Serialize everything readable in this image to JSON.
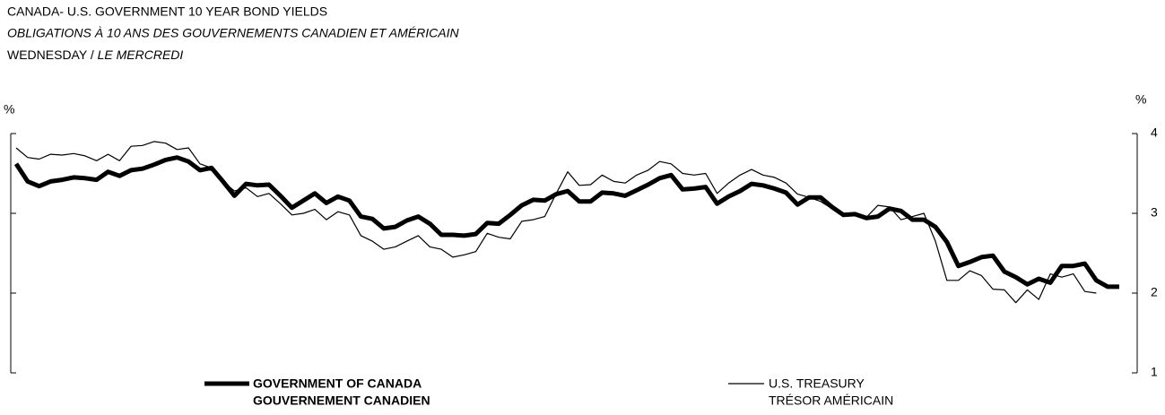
{
  "chart_data": {
    "type": "line",
    "title": "CANADA- U.S. GOVERNMENT 10 YEAR BOND YIELDS",
    "subtitle": "OBLIGATIONS À 10 ANS DES GOUVERNEMENTS CANADIEN ET AMÉRICAIN",
    "date_en": "WEDNESDAY",
    "date_separator": "/",
    "date_fr": "LE MERCREDI",
    "y_label": "%",
    "y2_label": "%",
    "ylim": [
      1,
      4
    ],
    "yticks": [
      1,
      2,
      3,
      4
    ],
    "series": [
      {
        "name": "GOVERNMENT OF CANADA",
        "name_fr": "GOUVERNEMENT CANADIEN",
        "color": "#000000",
        "values": [
          3.62,
          3.4,
          3.34,
          3.4,
          3.42,
          3.45,
          3.44,
          3.42,
          3.52,
          3.47,
          3.54,
          3.56,
          3.61,
          3.67,
          3.7,
          3.65,
          3.54,
          3.57,
          3.4,
          3.22,
          3.37,
          3.35,
          3.36,
          3.22,
          3.07,
          3.16,
          3.25,
          3.13,
          3.21,
          3.16,
          2.96,
          2.93,
          2.81,
          2.83,
          2.91,
          2.96,
          2.87,
          2.73,
          2.73,
          2.72,
          2.74,
          2.88,
          2.87,
          2.98,
          3.1,
          3.17,
          3.16,
          3.24,
          3.28,
          3.15,
          3.15,
          3.26,
          3.25,
          3.22,
          3.29,
          3.36,
          3.44,
          3.48,
          3.3,
          3.31,
          3.33,
          3.12,
          3.21,
          3.28,
          3.37,
          3.35,
          3.31,
          3.26,
          3.11,
          3.2,
          3.2,
          3.08,
          2.98,
          2.99,
          2.94,
          2.96,
          3.06,
          3.03,
          2.92,
          2.92,
          2.83,
          2.64,
          2.34,
          2.39,
          2.45,
          2.47,
          2.27,
          2.2,
          2.11,
          2.18,
          2.13,
          2.34,
          2.34,
          2.37,
          2.16,
          2.08,
          2.08
        ]
      },
      {
        "name": "U.S. TREASURY",
        "name_fr": "TRÉSOR AMÉRICAIN",
        "color": "#000000",
        "values": [
          3.82,
          3.7,
          3.68,
          3.74,
          3.73,
          3.75,
          3.72,
          3.66,
          3.74,
          3.66,
          3.84,
          3.85,
          3.9,
          3.88,
          3.8,
          3.82,
          3.62,
          3.57,
          3.4,
          3.28,
          3.32,
          3.21,
          3.25,
          3.12,
          2.98,
          3.0,
          3.05,
          2.92,
          3.02,
          2.98,
          2.72,
          2.65,
          2.55,
          2.58,
          2.65,
          2.72,
          2.58,
          2.55,
          2.45,
          2.48,
          2.52,
          2.75,
          2.7,
          2.68,
          2.9,
          2.92,
          2.96,
          3.25,
          3.52,
          3.35,
          3.36,
          3.48,
          3.4,
          3.38,
          3.48,
          3.54,
          3.65,
          3.62,
          3.5,
          3.48,
          3.5,
          3.25,
          3.38,
          3.48,
          3.55,
          3.48,
          3.45,
          3.38,
          3.24,
          3.2,
          3.15,
          3.06,
          2.98,
          3.0,
          2.95,
          3.1,
          3.08,
          2.92,
          2.96,
          3.0,
          2.65,
          2.16,
          2.16,
          2.28,
          2.22,
          2.05,
          2.04,
          1.88,
          2.04,
          1.92,
          2.24,
          2.2,
          2.24,
          2.02,
          2.0,
          null,
          null
        ]
      }
    ]
  }
}
